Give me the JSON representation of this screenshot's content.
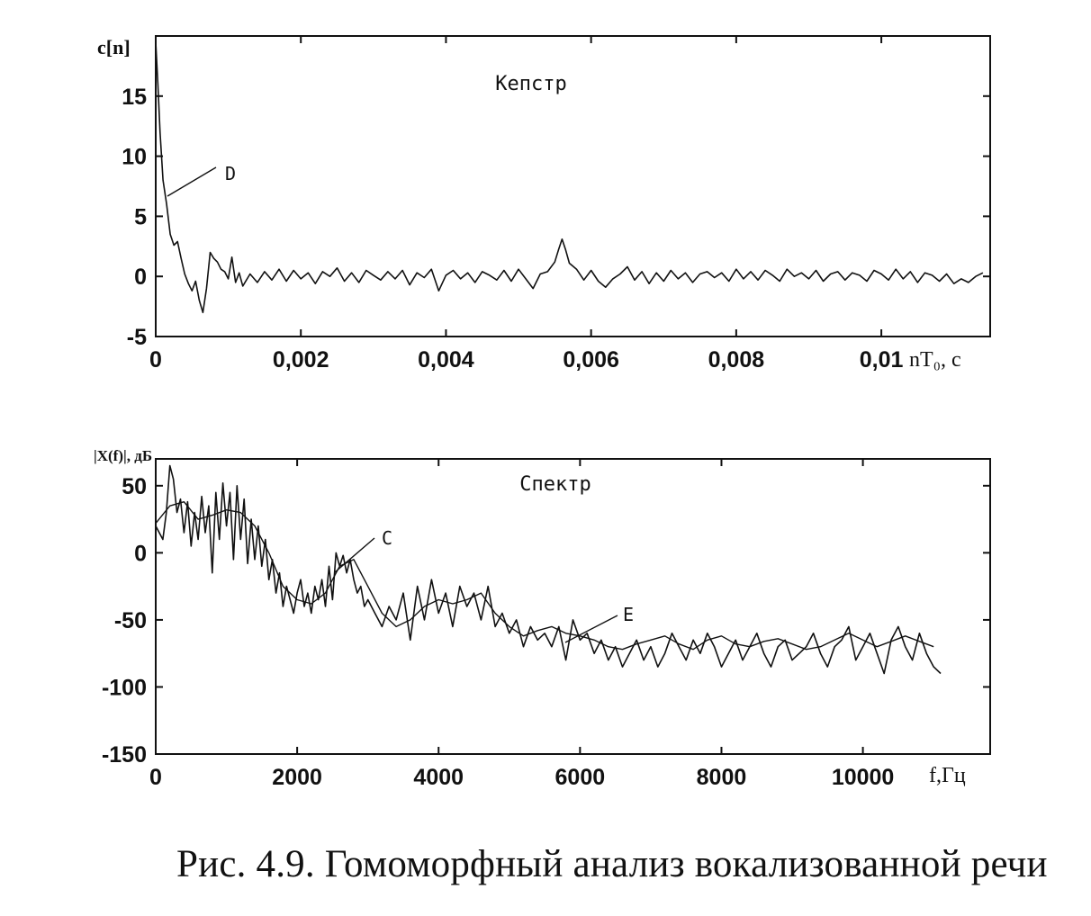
{
  "caption": "Рис. 4.9. Гомоморфный анализ вокализованной речи",
  "colors": {
    "ink": "#111111",
    "background": "#ffffff"
  },
  "chart_data": [
    {
      "type": "line",
      "title": "Кепстр",
      "ylabel": "c[n]",
      "xlabel": "nT₀, c",
      "xlim": [
        0,
        0.0115
      ],
      "ylim": [
        -5,
        20
      ],
      "grid": false,
      "x_ticks": [
        0,
        0.002,
        0.004,
        0.006,
        0.008,
        0.01
      ],
      "x_tick_labels": [
        "0",
        "0,002",
        "0,004",
        "0,006",
        "0,008",
        "0,01"
      ],
      "y_ticks": [
        -5,
        0,
        5,
        10,
        15
      ],
      "y_tick_labels": [
        "-5",
        "0",
        "5",
        "10",
        "15"
      ],
      "annotations": [
        {
          "text": "D",
          "x": 0.00015,
          "y": 6.5
        }
      ],
      "series": [
        {
          "x": [
            0,
            3e-05,
            6e-05,
            0.0001,
            0.00015,
            0.0002,
            0.00025,
            0.0003,
            0.00035,
            0.0004,
            0.00045,
            0.0005,
            0.00055,
            0.0006,
            0.00065,
            0.0007,
            0.00075,
            0.0008,
            0.00085,
            0.0009,
            0.00095,
            0.001,
            0.00105,
            0.0011,
            0.00115,
            0.0012,
            0.0013,
            0.0014,
            0.0015,
            0.0016,
            0.0017,
            0.0018,
            0.0019,
            0.002,
            0.0021,
            0.0022,
            0.0023,
            0.0024,
            0.0025,
            0.0026,
            0.0027,
            0.0028,
            0.0029,
            0.003,
            0.0031,
            0.0032,
            0.0033,
            0.0034,
            0.0035,
            0.0036,
            0.0037,
            0.0038,
            0.0039,
            0.004,
            0.0041,
            0.0042,
            0.0043,
            0.0044,
            0.0045,
            0.0046,
            0.0047,
            0.0048,
            0.0049,
            0.005,
            0.0051,
            0.0052,
            0.0053,
            0.0054,
            0.0055,
            0.00555,
            0.0056,
            0.00565,
            0.0057,
            0.0058,
            0.0059,
            0.006,
            0.0061,
            0.0062,
            0.0063,
            0.0064,
            0.0065,
            0.0066,
            0.0067,
            0.0068,
            0.0069,
            0.007,
            0.0071,
            0.0072,
            0.0073,
            0.0074,
            0.0075,
            0.0076,
            0.0077,
            0.0078,
            0.0079,
            0.008,
            0.0081,
            0.0082,
            0.0083,
            0.0084,
            0.0085,
            0.0086,
            0.0087,
            0.0088,
            0.0089,
            0.009,
            0.0091,
            0.0092,
            0.0093,
            0.0094,
            0.0095,
            0.0096,
            0.0097,
            0.0098,
            0.0099,
            0.01,
            0.0101,
            0.0102,
            0.0103,
            0.0104,
            0.0105,
            0.0106,
            0.0107,
            0.0108,
            0.0109,
            0.011,
            0.0111,
            0.0112,
            0.0113,
            0.0114
          ],
          "y": [
            19.5,
            16,
            12,
            8,
            6,
            3.5,
            2.6,
            2.9,
            1.5,
            0.2,
            -0.6,
            -1.2,
            -0.4,
            -2,
            -3,
            -1,
            2,
            1.5,
            1.2,
            0.6,
            0.4,
            -0.2,
            1.6,
            -0.5,
            0.3,
            -0.8,
            0.2,
            -0.5,
            0.4,
            -0.3,
            0.6,
            -0.4,
            0.5,
            -0.2,
            0.3,
            -0.6,
            0.4,
            0,
            0.7,
            -0.4,
            0.3,
            -0.5,
            0.5,
            0.1,
            -0.3,
            0.4,
            -0.2,
            0.5,
            -0.7,
            0.3,
            -0.1,
            0.6,
            -1.2,
            0.1,
            0.5,
            -0.2,
            0.3,
            -0.5,
            0.4,
            0.1,
            -0.3,
            0.5,
            -0.4,
            0.6,
            -0.2,
            -1,
            0.2,
            0.4,
            1.2,
            2.2,
            3.1,
            2.2,
            1.1,
            0.6,
            -0.3,
            0.5,
            -0.4,
            -0.9,
            -0.2,
            0.2,
            0.8,
            -0.3,
            0.4,
            -0.6,
            0.3,
            -0.4,
            0.5,
            -0.2,
            0.3,
            -0.5,
            0.2,
            0.4,
            -0.1,
            0.3,
            -0.4,
            0.6,
            -0.2,
            0.4,
            -0.3,
            0.5,
            0.1,
            -0.4,
            0.6,
            0,
            0.3,
            -0.2,
            0.5,
            -0.4,
            0.2,
            0.4,
            -0.3,
            0.3,
            0.1,
            -0.4,
            0.5,
            0.2,
            -0.3,
            0.6,
            -0.2,
            0.4,
            -0.5,
            0.3,
            0.1,
            -0.4,
            0.2,
            -0.6,
            -0.2,
            -0.5,
            0,
            0.3
          ]
        }
      ]
    },
    {
      "type": "line",
      "title": "Спектр",
      "ylabel": "|X(f)|, дБ",
      "xlabel": "f,Гц",
      "xlim": [
        0,
        11800
      ],
      "ylim": [
        -150,
        70
      ],
      "grid": false,
      "x_ticks": [
        0,
        2000,
        4000,
        6000,
        8000,
        10000
      ],
      "x_tick_labels": [
        "0",
        "2000",
        "4000",
        "6000",
        "8000",
        "10000"
      ],
      "y_ticks": [
        -150,
        -100,
        -50,
        0,
        50
      ],
      "y_tick_labels": [
        "-150",
        "-100",
        "-50",
        "0",
        "50"
      ],
      "annotations": [
        {
          "text": "C",
          "x": 2600,
          "y": 0
        },
        {
          "text": "E",
          "x": 5800,
          "y": -58
        }
      ],
      "series": [
        {
          "x": [
            0,
            100,
            150,
            200,
            250,
            300,
            350,
            400,
            450,
            500,
            550,
            600,
            650,
            700,
            750,
            800,
            850,
            900,
            950,
            1000,
            1050,
            1100,
            1150,
            1200,
            1250,
            1300,
            1350,
            1400,
            1450,
            1500,
            1550,
            1600,
            1650,
            1700,
            1750,
            1800,
            1850,
            1900,
            1950,
            2000,
            2050,
            2100,
            2150,
            2200,
            2250,
            2300,
            2350,
            2400,
            2450,
            2500,
            2550,
            2600,
            2650,
            2700,
            2750,
            2800,
            2850,
            2900,
            2950,
            3000,
            3100,
            3200,
            3300,
            3400,
            3500,
            3600,
            3700,
            3800,
            3900,
            4000,
            4100,
            4200,
            4300,
            4400,
            4500,
            4600,
            4700,
            4800,
            4900,
            5000,
            5100,
            5200,
            5300,
            5400,
            5500,
            5600,
            5700,
            5800,
            5900,
            6000,
            6100,
            6200,
            6300,
            6400,
            6500,
            6600,
            6700,
            6800,
            6900,
            7000,
            7100,
            7200,
            7300,
            7400,
            7500,
            7600,
            7700,
            7800,
            7900,
            8000,
            8100,
            8200,
            8300,
            8400,
            8500,
            8600,
            8700,
            8800,
            8900,
            9000,
            9100,
            9200,
            9300,
            9400,
            9500,
            9600,
            9700,
            9800,
            9900,
            10000,
            10100,
            10200,
            10300,
            10400,
            10500,
            10600,
            10700,
            10800,
            10900,
            11000,
            11100
          ],
          "y": [
            20,
            10,
            30,
            65,
            55,
            30,
            40,
            15,
            38,
            5,
            30,
            10,
            42,
            15,
            35,
            -15,
            45,
            10,
            52,
            20,
            45,
            -5,
            50,
            10,
            40,
            -8,
            25,
            -5,
            20,
            -10,
            10,
            -20,
            -5,
            -30,
            -15,
            -40,
            -25,
            -35,
            -45,
            -30,
            -20,
            -40,
            -30,
            -45,
            -25,
            -35,
            -20,
            -40,
            -10,
            -35,
            0,
            -10,
            -2,
            -15,
            -5,
            -20,
            -30,
            -25,
            -40,
            -35,
            -45,
            -55,
            -40,
            -50,
            -30,
            -65,
            -25,
            -50,
            -20,
            -45,
            -30,
            -55,
            -25,
            -40,
            -30,
            -50,
            -25,
            -55,
            -45,
            -60,
            -50,
            -70,
            -55,
            -65,
            -60,
            -70,
            -55,
            -80,
            -50,
            -65,
            -60,
            -75,
            -65,
            -80,
            -70,
            -85,
            -75,
            -65,
            -80,
            -70,
            -85,
            -75,
            -60,
            -70,
            -80,
            -65,
            -75,
            -60,
            -70,
            -85,
            -75,
            -65,
            -80,
            -70,
            -60,
            -75,
            -85,
            -70,
            -65,
            -80,
            -75,
            -70,
            -60,
            -75,
            -85,
            -70,
            -65,
            -55,
            -80,
            -70,
            -60,
            -75,
            -90,
            -65,
            -55,
            -70,
            -80,
            -60,
            -75,
            -85,
            -90
          ]
        },
        {
          "x": [
            0,
            200,
            400,
            600,
            800,
            1000,
            1200,
            1400,
            1600,
            1800,
            2000,
            2200,
            2400,
            2600,
            2800,
            3000,
            3200,
            3400,
            3600,
            3800,
            4000,
            4200,
            4400,
            4600,
            4800,
            5000,
            5200,
            5400,
            5600,
            5800,
            6000,
            6200,
            6400,
            6600,
            6800,
            7000,
            7200,
            7400,
            7600,
            7800,
            8000,
            8200,
            8400,
            8600,
            8800,
            9000,
            9200,
            9400,
            9600,
            9800,
            10000,
            10200,
            10400,
            10600,
            10800,
            11000
          ],
          "y": [
            22,
            35,
            38,
            25,
            28,
            32,
            30,
            20,
            0,
            -25,
            -35,
            -38,
            -30,
            -10,
            -5,
            -25,
            -45,
            -55,
            -50,
            -40,
            -35,
            -38,
            -35,
            -30,
            -45,
            -55,
            -62,
            -58,
            -55,
            -60,
            -62,
            -65,
            -70,
            -72,
            -68,
            -65,
            -62,
            -68,
            -72,
            -65,
            -62,
            -68,
            -70,
            -66,
            -64,
            -68,
            -72,
            -70,
            -65,
            -60,
            -65,
            -70,
            -66,
            -62,
            -66,
            -70
          ]
        }
      ]
    }
  ]
}
